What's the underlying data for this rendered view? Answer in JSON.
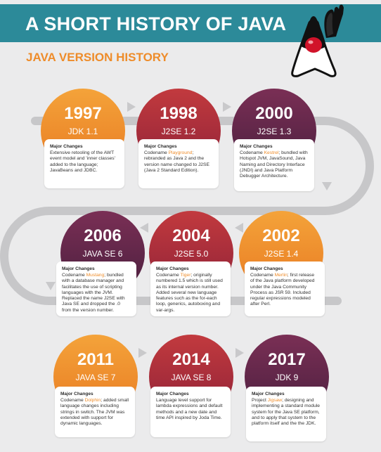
{
  "page": {
    "title": "A SHORT HISTORY OF JAVA",
    "section_title": "JAVA VERSION HISTORY"
  },
  "colors": {
    "header_teal": "#2c8a99",
    "accent_orange": "#ee8c2a",
    "crimson": "#a92a3b",
    "plum": "#5a2548",
    "track_gray": "#c7c7c9"
  },
  "mascot": {
    "icon": "duke-waving-icon"
  },
  "timeline": [
    {
      "year": "1997",
      "version": "JDK 1.1",
      "heading": "Major Changes",
      "body": [
        {
          "t": "Extensive retooling of the AWT event model and 'inner classes' added to the language; JavaBeans and JDBC."
        }
      ]
    },
    {
      "year": "1998",
      "version": "J2SE 1.2",
      "heading": "Major Changes",
      "body": [
        {
          "t": "Codename "
        },
        {
          "t": "Playground",
          "hl": true
        },
        {
          "t": "; rebranded as Java 2 and the version name changed to J2SE (Java 2 Standard Edition)."
        }
      ]
    },
    {
      "year": "2000",
      "version": "J2SE 1.3",
      "heading": "Major Changes",
      "body": [
        {
          "t": "Codename "
        },
        {
          "t": "Kestrel",
          "hl": true
        },
        {
          "t": "; bundled with Hotspot JVM, JavaSound, Java Naming and Directory Interface (JNDI) and Java Platform Debugger Architecture."
        }
      ]
    },
    {
      "year": "2006",
      "version": "JAVA SE 6",
      "heading": "Major Changes",
      "body": [
        {
          "t": "Codename "
        },
        {
          "t": "Mustang",
          "hl": true
        },
        {
          "t": "; bundled with a database manager and facilitates the use of scripting languages with the JVM. Replaced the name J2SE with Java SE and dropped the .0 from the version number."
        }
      ]
    },
    {
      "year": "2004",
      "version": "J2SE 5.0",
      "heading": "Major Changes",
      "body": [
        {
          "t": "Codename "
        },
        {
          "t": "Tiger",
          "hl": true
        },
        {
          "t": "; originally numbered 1.5 which is still used as its internal version number. Added several new language features such as the for-each loop, generics, autoboxing and var-args."
        }
      ]
    },
    {
      "year": "2002",
      "version": "J2SE 1.4",
      "heading": "Major Changes",
      "body": [
        {
          "t": "Codename "
        },
        {
          "t": "Merlin",
          "hl": true
        },
        {
          "t": "; first release of the Java platform developed under the Java Community Process as JSR 59. Included regular expressions modeled after Perl."
        }
      ]
    },
    {
      "year": "2011",
      "version": "JAVA SE 7",
      "heading": "Major Changes",
      "body": [
        {
          "t": "Codename "
        },
        {
          "t": "Dolphin",
          "hl": true
        },
        {
          "t": "; added small language changes including strings in switch. The JVM was extended with support for dynamic languages."
        }
      ]
    },
    {
      "year": "2014",
      "version": "JAVA SE 8",
      "heading": "Major Changes",
      "body": [
        {
          "t": "Language level support for lambda expressions and default methods and a new date and time API inspired by Joda Time."
        }
      ]
    },
    {
      "year": "2017",
      "version": "JDK 9",
      "heading": "Major Changes",
      "body": [
        {
          "t": "Project "
        },
        {
          "t": "Jigsaw",
          "hl": true
        },
        {
          "t": "; designing and implementing a standard module system for the Java SE platform, and to apply that system to the platform itself and the the JDK."
        }
      ]
    }
  ]
}
